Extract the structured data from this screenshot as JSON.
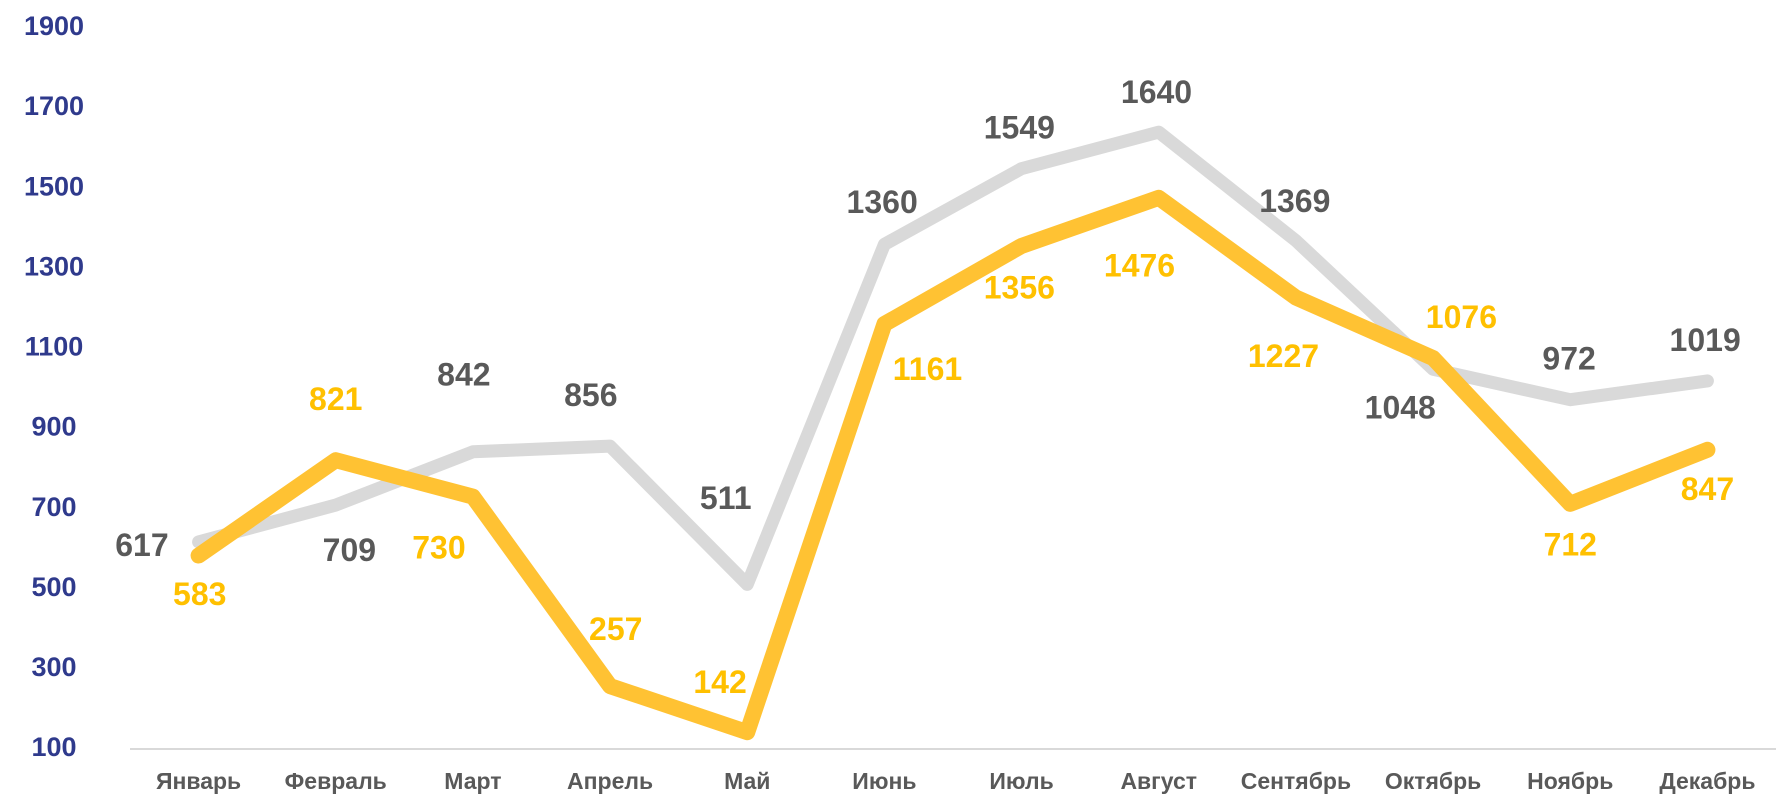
{
  "chart_data": {
    "type": "line",
    "categories": [
      "Январь",
      "Февраль",
      "Март",
      "Апрель",
      "Май",
      "Июнь",
      "Июль",
      "Август",
      "Сентябрь",
      "Октябрь",
      "Ноябрь",
      "Декабрь"
    ],
    "series": [
      {
        "color": "#d9d9d9",
        "label_color": "#595959",
        "values": [
          617,
          709,
          842,
          856,
          511,
          1360,
          1549,
          1640,
          1369,
          1048,
          972,
          1019
        ]
      },
      {
        "color": "#ffc233",
        "label_color": "#ffc000",
        "values": [
          583,
          821,
          730,
          257,
          142,
          1161,
          1356,
          1476,
          1227,
          1076,
          712,
          847
        ]
      }
    ],
    "ylim": [
      100,
      1900
    ],
    "yticks": [
      100,
      300,
      500,
      700,
      900,
      1100,
      1300,
      1500,
      1700,
      1900
    ],
    "grid": false
  }
}
